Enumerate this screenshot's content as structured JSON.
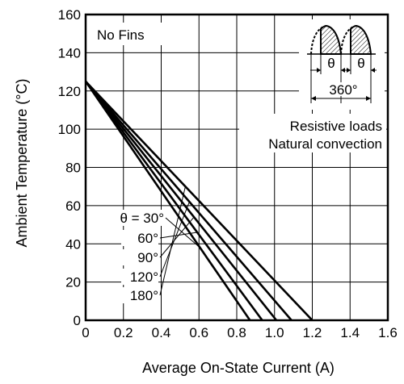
{
  "chart_data": {
    "type": "line",
    "xlabel": "Average On-State Current  (A)",
    "ylabel": "Ambient Temperature  (°C)",
    "xlim": [
      0,
      1.6
    ],
    "ylim": [
      0,
      160
    ],
    "x_ticks": [
      "0",
      "0.2",
      "0.4",
      "0.6",
      "0.8",
      "1.0",
      "1.2",
      "1.4",
      "1.6"
    ],
    "y_ticks": [
      "0",
      "20",
      "40",
      "60",
      "80",
      "100",
      "120",
      "140",
      "160"
    ],
    "grid": true,
    "series": [
      {
        "name": "θ = 30°",
        "x": [
          0,
          0.87
        ],
        "y": [
          125,
          0
        ]
      },
      {
        "name": "60°",
        "x": [
          0,
          0.935
        ],
        "y": [
          125,
          0
        ]
      },
      {
        "name": "90°",
        "x": [
          0,
          1.01
        ],
        "y": [
          125,
          0
        ]
      },
      {
        "name": "120°",
        "x": [
          0,
          1.09
        ],
        "y": [
          125,
          0
        ]
      },
      {
        "name": "180°",
        "x": [
          0,
          1.2
        ],
        "y": [
          125,
          0
        ]
      }
    ],
    "annotations": {
      "no_fins": "No Fins",
      "resistive": "Resistive loads",
      "convection": "Natural convection",
      "theta": "θ",
      "period": "360°"
    }
  }
}
